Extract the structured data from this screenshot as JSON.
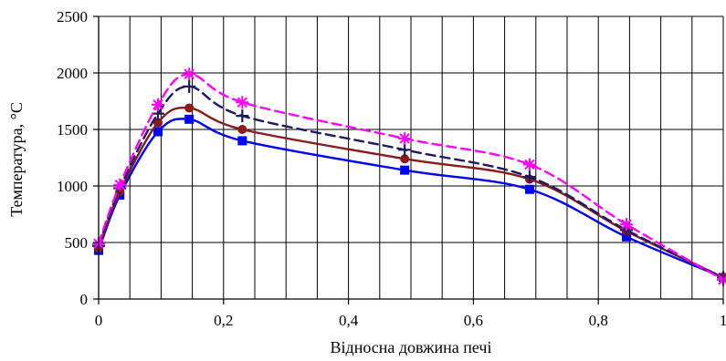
{
  "chart_data": {
    "type": "line",
    "title": "",
    "xlabel": "Відносна довжина печі",
    "ylabel": "Температура, °С",
    "xlim": [
      0,
      1
    ],
    "ylim": [
      0,
      2500
    ],
    "x_ticks": [
      0,
      0.2,
      0.4,
      0.6,
      0.8,
      1
    ],
    "x_tick_labels": [
      "0",
      "0,2",
      "0,4",
      "0,6",
      "0,8",
      "1"
    ],
    "y_ticks": [
      0,
      500,
      1000,
      1500,
      2000,
      2500
    ],
    "y_tick_labels": [
      "0",
      "500",
      "1000",
      "1500",
      "2000",
      "2500"
    ],
    "x_minor_grid_step": 0.05,
    "grid": true,
    "legend": "none",
    "series": [
      {
        "color": "#0000ff",
        "line_style": "solid",
        "marker": "square",
        "x": [
          0,
          0.034,
          0.095,
          0.145,
          0.23,
          0.49,
          0.69,
          0.845,
          1
        ],
        "y": [
          430,
          920,
          1480,
          1590,
          1400,
          1140,
          970,
          550,
          190
        ]
      },
      {
        "color": "#8b1a1a",
        "line_style": "solid",
        "marker": "circle",
        "x": [
          0,
          0.034,
          0.095,
          0.145,
          0.23,
          0.49,
          0.69,
          0.845,
          1
        ],
        "y": [
          450,
          950,
          1560,
          1690,
          1500,
          1240,
          1060,
          600,
          190
        ]
      },
      {
        "color": "#1a1a66",
        "line_style": "dashed",
        "marker": "plus",
        "x": [
          0,
          0.034,
          0.095,
          0.145,
          0.23,
          0.49,
          0.69,
          0.845,
          1
        ],
        "y": [
          470,
          980,
          1640,
          1880,
          1620,
          1320,
          1080,
          610,
          190
        ]
      },
      {
        "color": "#ff00ff",
        "line_style": "dashed",
        "marker": "star",
        "x": [
          0,
          0.034,
          0.095,
          0.145,
          0.23,
          0.49,
          0.69,
          0.845,
          1
        ],
        "y": [
          490,
          1010,
          1720,
          1990,
          1740,
          1420,
          1190,
          660,
          170
        ]
      }
    ]
  }
}
